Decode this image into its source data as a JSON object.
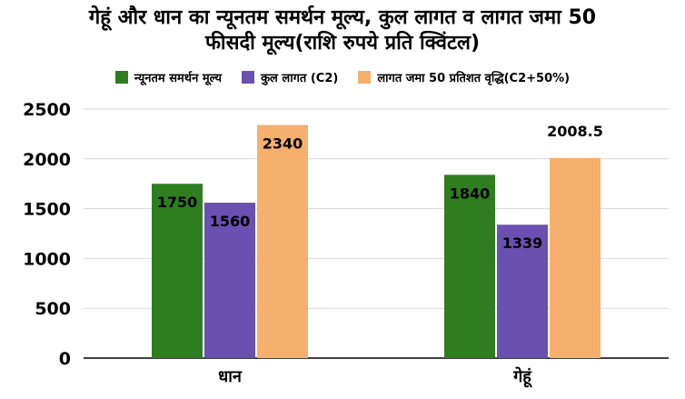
{
  "chart_data": {
    "type": "bar",
    "title_line1": "गेहूं  और धान का न्यूनतम समर्थन मूल्य, कुल लागत व लागत जमा 50",
    "title_line2": "फीसदी मूल्य(राशि रुपये प्रति क्विंटल)",
    "categories": [
      "धान",
      "गेहूं"
    ],
    "series": [
      {
        "name": "न्यूनतम समर्थन मूल्य",
        "color": "#2e7d1f",
        "values": [
          1750,
          1840
        ],
        "labels": [
          "1750",
          "1840"
        ]
      },
      {
        "name": "कुल लागत (C2)",
        "color": "#6a50b0",
        "values": [
          1560,
          1339
        ],
        "labels": [
          "1560",
          "1339"
        ]
      },
      {
        "name": "लागत जमा 50 प्रतिशत वृद्धि(C2+50%)",
        "color": "#f5b06e",
        "values": [
          2340,
          2008.5
        ],
        "labels": [
          "2340",
          "2008.5"
        ]
      }
    ],
    "ylim": [
      0,
      2500
    ],
    "yticks": [
      "0",
      "500",
      "1000",
      "1500",
      "2000",
      "2500"
    ],
    "grid": true,
    "legend_position": "top"
  }
}
